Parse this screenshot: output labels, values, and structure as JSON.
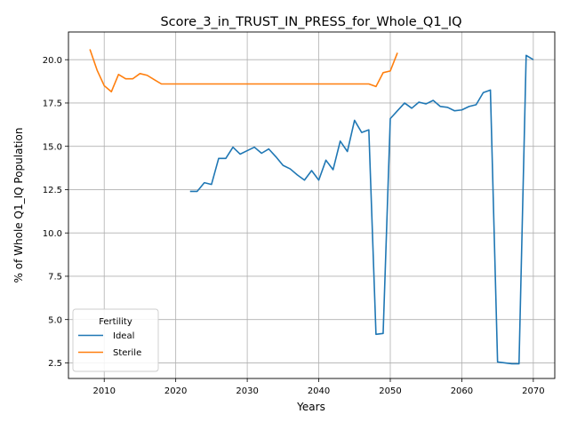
{
  "chart_data": {
    "type": "line",
    "title": "Score_3_in_TRUST_IN_PRESS_for_Whole_Q1_IQ",
    "xlabel": "Years",
    "ylabel": "% of Whole Q1_IQ Population",
    "xlim": [
      2005,
      2073
    ],
    "ylim": [
      1.6,
      21.6
    ],
    "xticks": [
      2010,
      2020,
      2030,
      2040,
      2050,
      2060,
      2070
    ],
    "yticks": [
      2.5,
      5.0,
      7.5,
      10.0,
      12.5,
      15.0,
      17.5,
      20.0
    ],
    "grid": true,
    "legend": {
      "title": "Fertility",
      "position": "lower-left"
    },
    "series": [
      {
        "name": "Ideal",
        "color": "#1f77b4",
        "points": [
          [
            2022,
            12.4
          ],
          [
            2023,
            12.4
          ],
          [
            2024,
            12.9
          ],
          [
            2025,
            12.8
          ],
          [
            2026,
            14.3
          ],
          [
            2027,
            14.3
          ],
          [
            2028,
            14.95
          ],
          [
            2029,
            14.55
          ],
          [
            2030,
            14.75
          ],
          [
            2031,
            14.95
          ],
          [
            2032,
            14.6
          ],
          [
            2033,
            14.85
          ],
          [
            2034,
            14.4
          ],
          [
            2035,
            13.9
          ],
          [
            2036,
            13.7
          ],
          [
            2037,
            13.35
          ],
          [
            2038,
            13.05
          ],
          [
            2039,
            13.6
          ],
          [
            2040,
            13.05
          ],
          [
            2041,
            14.2
          ],
          [
            2042,
            13.65
          ],
          [
            2043,
            15.3
          ],
          [
            2044,
            14.7
          ],
          [
            2045,
            16.5
          ],
          [
            2046,
            15.8
          ],
          [
            2047,
            15.95
          ],
          [
            2048,
            4.15
          ],
          [
            2049,
            4.2
          ],
          [
            2050,
            16.6
          ],
          [
            2051,
            17.05
          ],
          [
            2052,
            17.5
          ],
          [
            2053,
            17.2
          ],
          [
            2054,
            17.55
          ],
          [
            2055,
            17.45
          ],
          [
            2056,
            17.65
          ],
          [
            2057,
            17.3
          ],
          [
            2058,
            17.25
          ],
          [
            2059,
            17.05
          ],
          [
            2060,
            17.1
          ],
          [
            2061,
            17.3
          ],
          [
            2062,
            17.4
          ],
          [
            2063,
            18.1
          ],
          [
            2064,
            18.25
          ],
          [
            2065,
            2.55
          ],
          [
            2066,
            2.5
          ],
          [
            2067,
            2.45
          ],
          [
            2068,
            2.45
          ],
          [
            2069,
            20.25
          ],
          [
            2070,
            20.0
          ]
        ]
      },
      {
        "name": "Sterile",
        "color": "#ff7f0e",
        "points": [
          [
            2008,
            20.6
          ],
          [
            2009,
            19.4
          ],
          [
            2010,
            18.5
          ],
          [
            2011,
            18.15
          ],
          [
            2012,
            19.15
          ],
          [
            2013,
            18.9
          ],
          [
            2014,
            18.9
          ],
          [
            2015,
            19.2
          ],
          [
            2016,
            19.1
          ],
          [
            2017,
            18.85
          ],
          [
            2018,
            18.6
          ],
          [
            2019,
            18.6
          ],
          [
            2020,
            18.6
          ],
          [
            2025,
            18.6
          ],
          [
            2030,
            18.6
          ],
          [
            2035,
            18.6
          ],
          [
            2040,
            18.6
          ],
          [
            2045,
            18.6
          ],
          [
            2047,
            18.6
          ],
          [
            2048,
            18.45
          ],
          [
            2049,
            19.25
          ],
          [
            2050,
            19.35
          ],
          [
            2051,
            20.4
          ]
        ]
      }
    ]
  }
}
